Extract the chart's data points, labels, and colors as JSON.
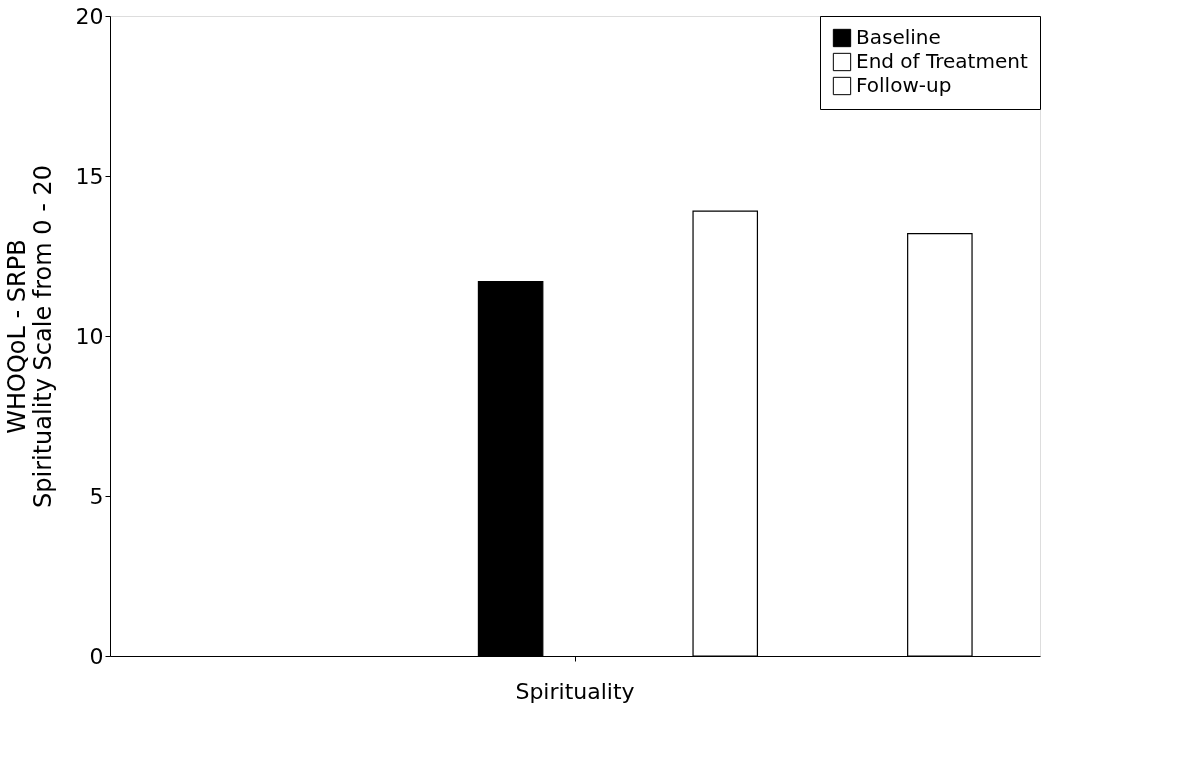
{
  "chart_data": {
    "type": "bar",
    "ylabel": "WHOQoL - SRPB\nSpirituality Scale from 0 - 20",
    "categories": [
      "Spirituality"
    ],
    "series": [
      {
        "name": "Baseline",
        "color": "#000000",
        "values": [
          11.7
        ]
      },
      {
        "name": "End of Treatment",
        "color": "#ffffff",
        "values": [
          13.9
        ]
      },
      {
        "name": "Follow-up",
        "color": "#ffffff",
        "values": [
          13.2
        ]
      }
    ],
    "ylim": [
      0,
      20
    ],
    "yticks": [
      0,
      5,
      10,
      15,
      20
    ],
    "grid": false,
    "legend": "top right"
  }
}
